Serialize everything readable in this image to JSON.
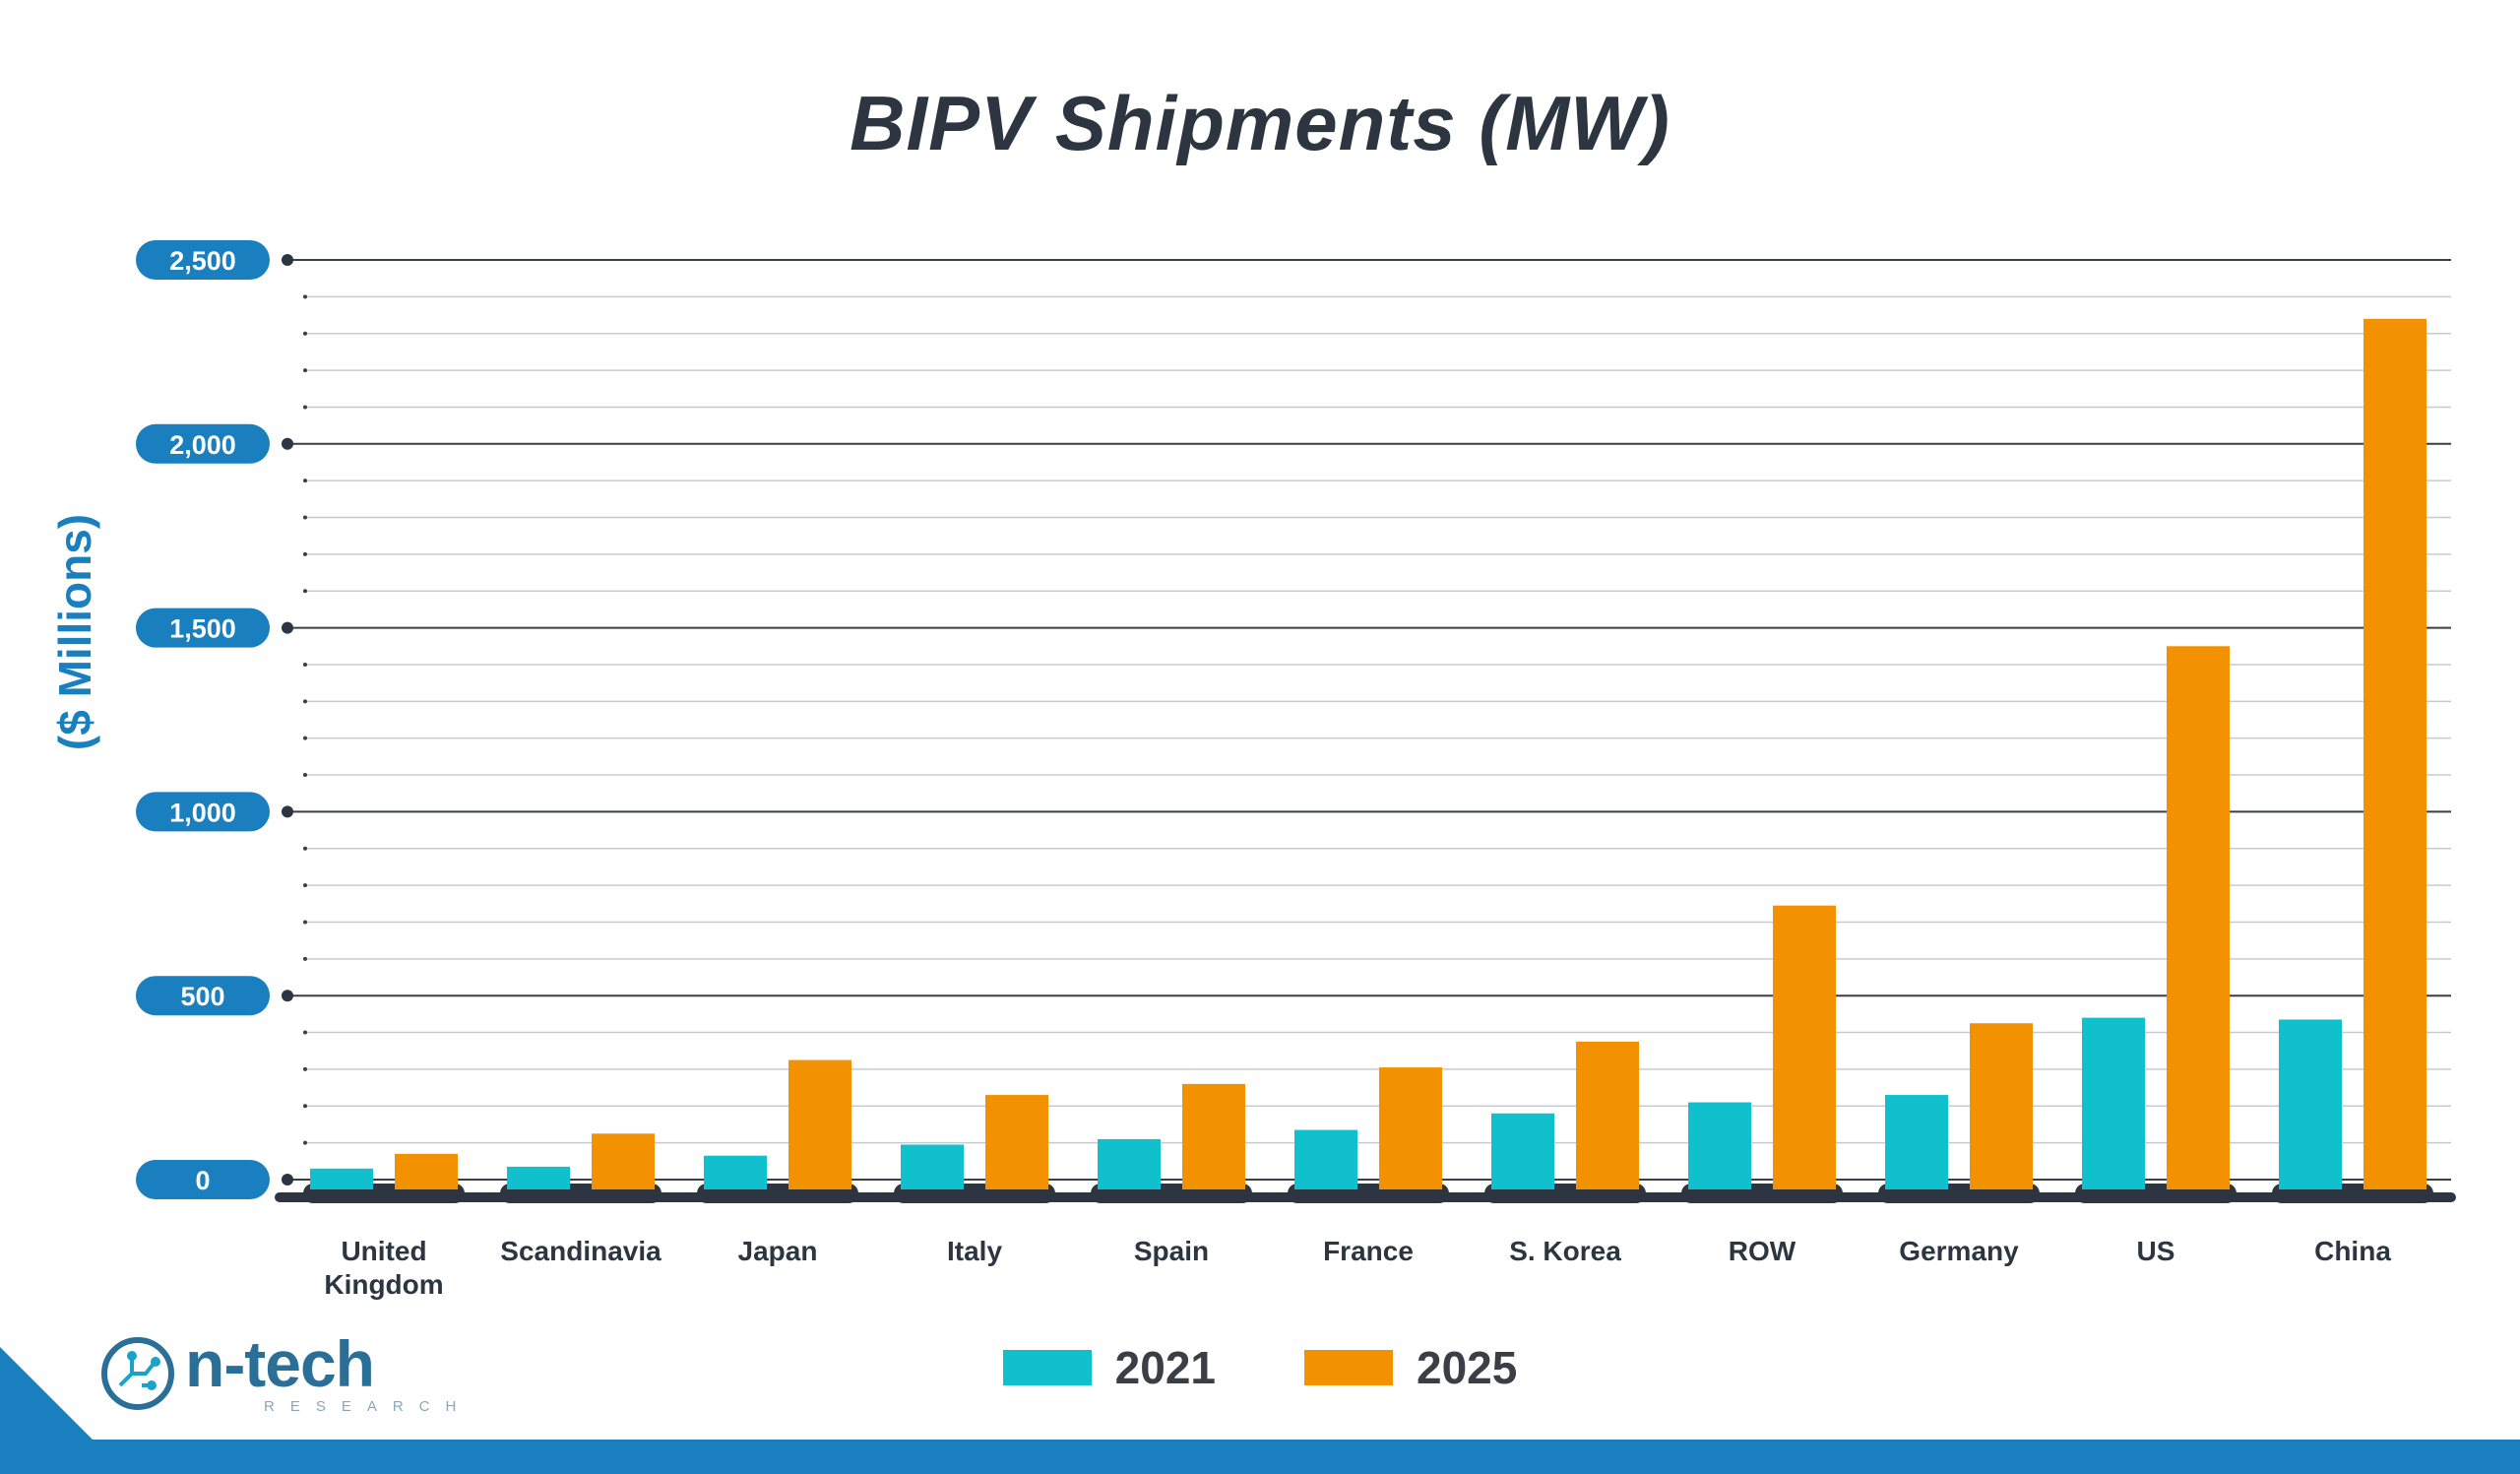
{
  "chart_data": {
    "type": "bar",
    "title": "BIPV Shipments (MW)",
    "ylabel": "($ Millions)",
    "xlabel": "",
    "ylim": [
      0,
      2500
    ],
    "yticks": [
      "2,500",
      "2,000",
      "1,500",
      "1,000",
      "500",
      "0"
    ],
    "ytick_values": [
      2500,
      2000,
      1500,
      1000,
      500,
      0
    ],
    "categories": [
      "United Kingdom",
      "Scandinavia",
      "Japan",
      "Italy",
      "Spain",
      "France",
      "S. Korea",
      "ROW",
      "Germany",
      "US",
      "China"
    ],
    "category_lines": [
      [
        "United",
        "Kingdom"
      ],
      [
        "Scandinavia"
      ],
      [
        "Japan"
      ],
      [
        "Italy"
      ],
      [
        "Spain"
      ],
      [
        "France"
      ],
      [
        "S. Korea"
      ],
      [
        "ROW"
      ],
      [
        "Germany"
      ],
      [
        "US"
      ],
      [
        "China"
      ]
    ],
    "series": [
      {
        "name": "2021",
        "color": "#10c0cc",
        "values": [
          30,
          35,
          65,
          95,
          110,
          135,
          180,
          210,
          230,
          440,
          435
        ]
      },
      {
        "name": "2025",
        "color": "#f39200",
        "values": [
          70,
          125,
          325,
          230,
          260,
          305,
          375,
          745,
          425,
          1450,
          2340
        ]
      }
    ],
    "grid": true,
    "legend_position": "bottom-center"
  },
  "colors": {
    "accent": "#1a7fbf",
    "title": "#2d3640",
    "axis": "#2d3640"
  },
  "logo": {
    "name": "n-tech",
    "sub": "RESEARCH"
  }
}
